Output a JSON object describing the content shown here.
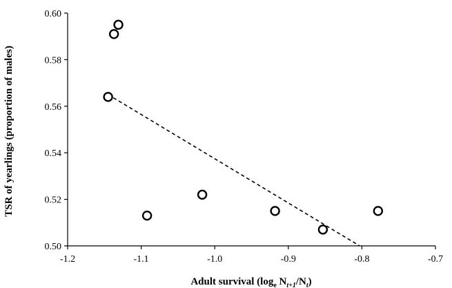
{
  "chart_data": {
    "type": "scatter",
    "xlabel": {
      "main": "Adult survival (log",
      "sub_e": "e",
      "n1": " N",
      "sub_t1": "t+1",
      "slash": "/N",
      "sub_t": "t",
      "close": ")"
    },
    "ylabel": "TSR of yearlings (proportion of males)",
    "xlim": [
      -1.2,
      -0.7
    ],
    "ylim": [
      0.5,
      0.6
    ],
    "x_ticks": [
      "-1.2",
      "-1.1",
      "-1.0",
      "-0.9",
      "-0.8",
      "-0.7"
    ],
    "x_tick_values": [
      -1.2,
      -1.1,
      -1.0,
      -0.9,
      -0.8,
      -0.7
    ],
    "y_ticks": [
      "0.50",
      "0.52",
      "0.54",
      "0.56",
      "0.58",
      "0.60"
    ],
    "y_tick_values": [
      0.5,
      0.52,
      0.54,
      0.56,
      0.58,
      0.6
    ],
    "points": [
      {
        "x": -1.131,
        "y": 0.595
      },
      {
        "x": -1.137,
        "y": 0.591
      },
      {
        "x": -1.145,
        "y": 0.564
      },
      {
        "x": -1.092,
        "y": 0.513
      },
      {
        "x": -1.017,
        "y": 0.522
      },
      {
        "x": -0.918,
        "y": 0.515
      },
      {
        "x": -0.853,
        "y": 0.507
      },
      {
        "x": -0.778,
        "y": 0.515
      }
    ],
    "trendline": {
      "style": "dashed",
      "x": [
        -1.145,
        -0.803
      ],
      "y": [
        0.565,
        0.5
      ]
    },
    "grid": false,
    "legend": false
  }
}
